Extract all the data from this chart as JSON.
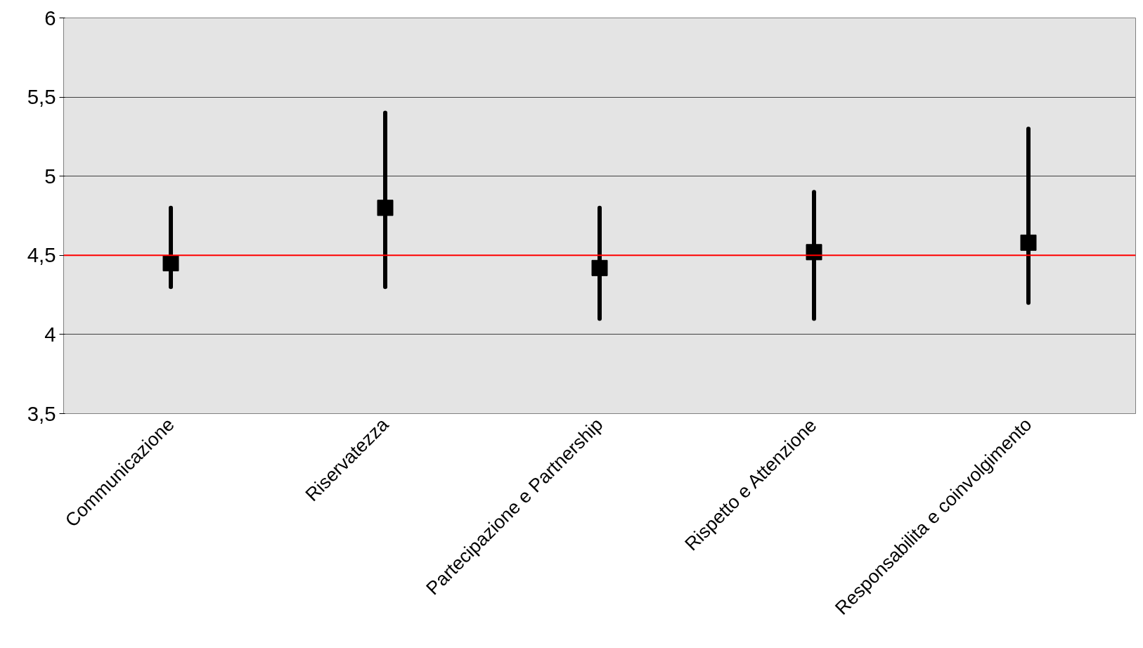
{
  "chart_data": {
    "type": "scatter",
    "categories": [
      "Communicazione",
      "Riservatezza",
      "Partecipazione e Partnership",
      "Rispetto e Attenzione",
      "Responsabilita e coinvolgimento"
    ],
    "values": [
      4.45,
      4.8,
      4.42,
      4.52,
      4.58
    ],
    "errors": [
      [
        4.3,
        4.8
      ],
      [
        4.3,
        5.4
      ],
      [
        4.1,
        4.8
      ],
      [
        4.1,
        4.9
      ],
      [
        4.2,
        5.3
      ]
    ],
    "color": "#000000",
    "marker": "square",
    "ylim": [
      3.5,
      6
    ],
    "yticks": [
      {
        "value": 3.5,
        "label": "3,5"
      },
      4,
      {
        "value": 4.5,
        "label": "4,5"
      },
      5,
      {
        "value": 5.5,
        "label": "5,5"
      },
      6
    ],
    "ref_lines": [
      {
        "axis": "y",
        "value": 4.5,
        "color": "#ff0000"
      }
    ],
    "grid": "y"
  }
}
